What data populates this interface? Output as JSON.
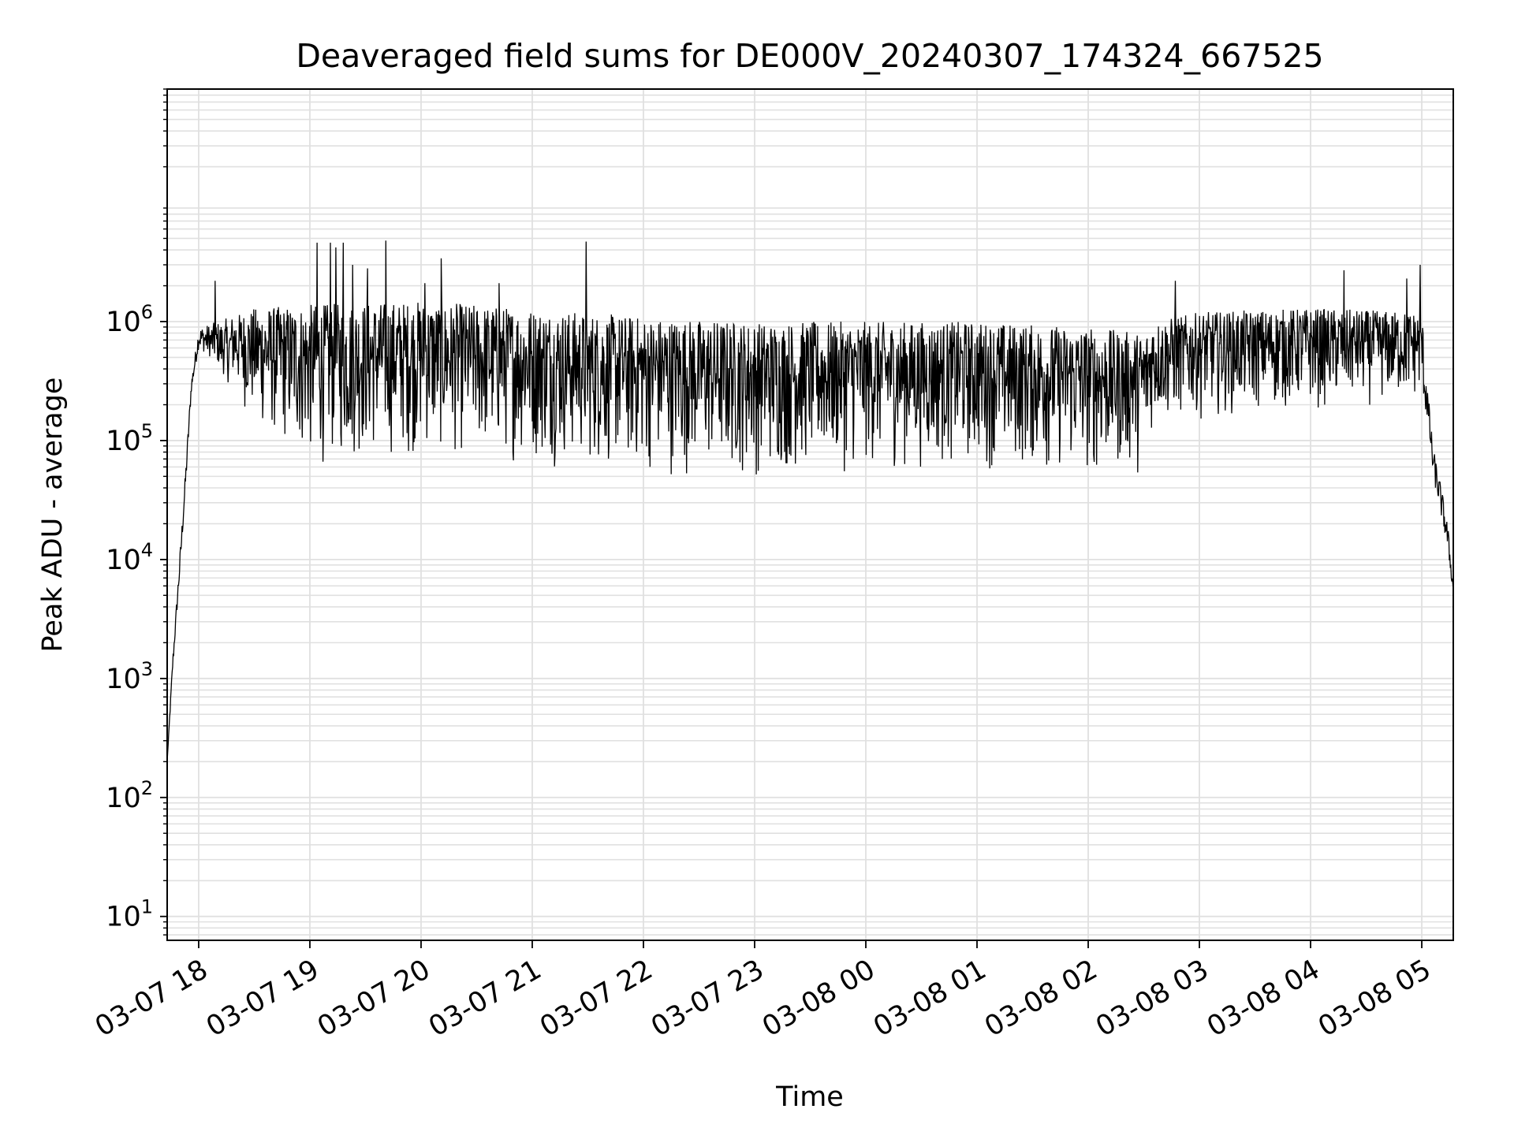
{
  "chart_data": {
    "type": "line",
    "title": "Deaveraged field sums for DE000V_20240307_174324_667525",
    "xlabel": "Time",
    "ylabel": "Peak ADU - average",
    "y_scale": "log",
    "ylim": [
      6.3,
      90000000
    ],
    "xlim": [
      "2024-03-07 17:43",
      "2024-03-08 05:17"
    ],
    "grid": true,
    "grid_minor": true,
    "line_color": "#000000",
    "grid_color": "#e0e0e0",
    "x_ticks": [
      {
        "value": "2024-03-07 18:00",
        "label": "03-07 18"
      },
      {
        "value": "2024-03-07 19:00",
        "label": "03-07 19"
      },
      {
        "value": "2024-03-07 20:00",
        "label": "03-07 20"
      },
      {
        "value": "2024-03-07 21:00",
        "label": "03-07 21"
      },
      {
        "value": "2024-03-07 22:00",
        "label": "03-07 22"
      },
      {
        "value": "2024-03-07 23:00",
        "label": "03-07 23"
      },
      {
        "value": "2024-03-08 00:00",
        "label": "03-08 00"
      },
      {
        "value": "2024-03-08 01:00",
        "label": "03-08 01"
      },
      {
        "value": "2024-03-08 02:00",
        "label": "03-08 02"
      },
      {
        "value": "2024-03-08 03:00",
        "label": "03-08 03"
      },
      {
        "value": "2024-03-08 04:00",
        "label": "03-08 04"
      },
      {
        "value": "2024-03-08 05:00",
        "label": "03-08 05"
      }
    ],
    "y_ticks": [
      {
        "value": 10,
        "base": "10",
        "exp": "1"
      },
      {
        "value": 100,
        "base": "10",
        "exp": "2"
      },
      {
        "value": 1000,
        "base": "10",
        "exp": "3"
      },
      {
        "value": 10000,
        "base": "10",
        "exp": "4"
      },
      {
        "value": 100000,
        "base": "10",
        "exp": "5"
      },
      {
        "value": 1000000,
        "base": "10",
        "exp": "6"
      }
    ],
    "series": [
      {
        "envelope_profile": [
          {
            "x": "2024-03-07 17:43",
            "lo": 200,
            "hi": 200
          },
          {
            "x": "2024-03-07 17:46",
            "lo": 1200,
            "hi": 1500
          },
          {
            "x": "2024-03-07 17:50",
            "lo": 8000,
            "hi": 12000
          },
          {
            "x": "2024-03-07 17:53",
            "lo": 40000,
            "hi": 60000
          },
          {
            "x": "2024-03-07 17:56",
            "lo": 250000,
            "hi": 320000
          },
          {
            "x": "2024-03-07 18:00",
            "lo": 600000,
            "hi": 900000
          },
          {
            "x": "2024-03-07 18:10",
            "lo": 450000,
            "hi": 1000000
          },
          {
            "x": "2024-03-07 18:30",
            "lo": 120000,
            "hi": 1300000
          },
          {
            "x": "2024-03-07 19:00",
            "lo": 55000,
            "hi": 1400000
          },
          {
            "x": "2024-03-07 20:00",
            "lo": 70000,
            "hi": 1500000
          },
          {
            "x": "2024-03-07 21:00",
            "lo": 60000,
            "hi": 1300000
          },
          {
            "x": "2024-03-07 22:00",
            "lo": 48000,
            "hi": 1100000
          },
          {
            "x": "2024-03-07 23:00",
            "lo": 45000,
            "hi": 1000000
          },
          {
            "x": "2024-03-08 00:00",
            "lo": 52000,
            "hi": 1000000
          },
          {
            "x": "2024-03-08 01:00",
            "lo": 55000,
            "hi": 1000000
          },
          {
            "x": "2024-03-08 02:00",
            "lo": 45000,
            "hi": 900000
          },
          {
            "x": "2024-03-08 02:30",
            "lo": 50000,
            "hi": 800000
          },
          {
            "x": "2024-03-08 02:35",
            "lo": 120000,
            "hi": 1000000
          },
          {
            "x": "2024-03-08 03:00",
            "lo": 150000,
            "hi": 1200000
          },
          {
            "x": "2024-03-08 04:00",
            "lo": 170000,
            "hi": 1300000
          },
          {
            "x": "2024-03-08 05:00",
            "lo": 200000,
            "hi": 1200000
          },
          {
            "x": "2024-03-08 05:03",
            "lo": 150000,
            "hi": 300000
          },
          {
            "x": "2024-03-08 05:06",
            "lo": 50000,
            "hi": 90000
          },
          {
            "x": "2024-03-08 05:10",
            "lo": 25000,
            "hi": 45000
          },
          {
            "x": "2024-03-08 05:14",
            "lo": 12000,
            "hi": 20000
          },
          {
            "x": "2024-03-08 05:17",
            "lo": 5000,
            "hi": 6000
          }
        ],
        "spikes": [
          {
            "x": "2024-03-07 18:09",
            "y": 2200000
          },
          {
            "x": "2024-03-07 19:04",
            "y": 4600000
          },
          {
            "x": "2024-03-07 19:11",
            "y": 4600000
          },
          {
            "x": "2024-03-07 19:14",
            "y": 4200000
          },
          {
            "x": "2024-03-07 19:18",
            "y": 4600000
          },
          {
            "x": "2024-03-07 19:23",
            "y": 3000000
          },
          {
            "x": "2024-03-07 19:31",
            "y": 2800000
          },
          {
            "x": "2024-03-07 19:41",
            "y": 4800000
          },
          {
            "x": "2024-03-07 20:02",
            "y": 2100000
          },
          {
            "x": "2024-03-07 20:11",
            "y": 3400000
          },
          {
            "x": "2024-03-07 20:42",
            "y": 2100000
          },
          {
            "x": "2024-03-07 21:29",
            "y": 4700000
          },
          {
            "x": "2024-03-08 02:47",
            "y": 2200000
          },
          {
            "x": "2024-03-08 04:18",
            "y": 2700000
          },
          {
            "x": "2024-03-08 04:52",
            "y": 2300000
          },
          {
            "x": "2024-03-08 04:59",
            "y": 3500000
          },
          {
            "x": "2024-03-08 04:59",
            "y": 3000000
          }
        ]
      }
    ]
  }
}
